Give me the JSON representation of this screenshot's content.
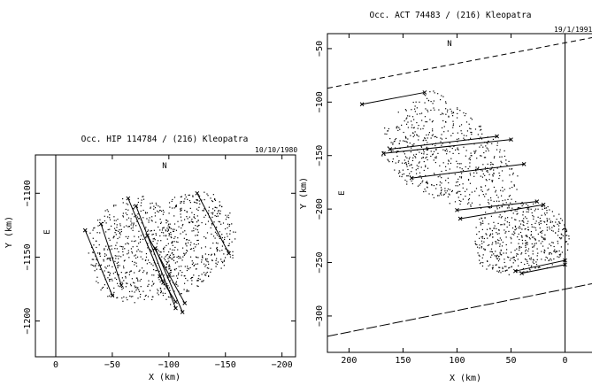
{
  "chart_data": [
    {
      "type": "scatter",
      "title": "Occ. HIP 114784 / (216) Kleopatra",
      "date": "10/10/1980",
      "xlabel": "X (km)",
      "ylabel": "Y (km)",
      "north_label": "N",
      "east_label": "E",
      "xlim": [
        18,
        -212
      ],
      "ylim": [
        -1228,
        -1070
      ],
      "x_ticks": [
        "0",
        "−50",
        "−100",
        "−150",
        "−200"
      ],
      "x_tick_values": [
        0,
        -50,
        -100,
        -150,
        -200
      ],
      "y_ticks": [
        "−1100",
        "−1150",
        "−1200"
      ],
      "y_tick_values": [
        -1100,
        -1150,
        -1200
      ],
      "lobes": [
        {
          "outline": [
            [
              -30,
              -1128
            ],
            [
              -40,
              -1115
            ],
            [
              -55,
              -1105
            ],
            [
              -75,
              -1101
            ],
            [
              -90,
              -1108
            ],
            [
              -100,
              -1120
            ],
            [
              -105,
              -1135
            ],
            [
              -102,
              -1162
            ],
            [
              -95,
              -1178
            ],
            [
              -85,
              -1185
            ],
            [
              -70,
              -1186
            ],
            [
              -50,
              -1184
            ],
            [
              -38,
              -1175
            ],
            [
              -32,
              -1160
            ],
            [
              -28,
              -1145
            ]
          ],
          "dots": 520
        },
        {
          "outline": [
            [
              -92,
              -1115
            ],
            [
              -105,
              -1103
            ],
            [
              -122,
              -1097
            ],
            [
              -140,
              -1100
            ],
            [
              -153,
              -1112
            ],
            [
              -160,
              -1130
            ],
            [
              -157,
              -1150
            ],
            [
              -145,
              -1163
            ],
            [
              -128,
              -1172
            ],
            [
              -112,
              -1180
            ],
            [
              -100,
              -1188
            ],
            [
              -93,
              -1178
            ],
            [
              -96,
              -1160
            ],
            [
              -94,
              -1140
            ]
          ],
          "dots": 460
        }
      ],
      "chords": [
        {
          "x1": -26,
          "y1": -1129,
          "x2": -50,
          "y2": -1180
        },
        {
          "x1": -40,
          "y1": -1124,
          "x2": -58,
          "y2": -1172
        },
        {
          "x1": -64,
          "y1": -1104,
          "x2": -95,
          "y2": -1170
        },
        {
          "x1": -71,
          "y1": -1110,
          "x2": -106,
          "y2": -1190
        },
        {
          "x1": -81,
          "y1": -1133,
          "x2": -114,
          "y2": -1186
        },
        {
          "x1": -88,
          "y1": -1143,
          "x2": -112,
          "y2": -1193
        },
        {
          "x1": -92,
          "y1": -1165,
          "x2": -106,
          "y2": -1185
        },
        {
          "x1": -125,
          "y1": -1100,
          "x2": -153,
          "y2": -1147
        }
      ]
    },
    {
      "type": "scatter",
      "title": "Occ. ACT 74483 / (216) Kleopatra",
      "date": "19/1/1991",
      "xlabel": "X (km)",
      "ylabel": "Y (km)",
      "north_label": "N",
      "east_label": "E",
      "xlim": [
        220,
        -34
      ],
      "ylim": [
        -334,
        -36
      ],
      "x_ticks": [
        "200",
        "150",
        "100",
        "50",
        "0"
      ],
      "x_tick_values": [
        200,
        150,
        100,
        50,
        0
      ],
      "y_ticks": [
        "−50",
        "−100",
        "−150",
        "−200",
        "−250",
        "−300"
      ],
      "y_tick_values": [
        -50,
        -100,
        -150,
        -200,
        -250,
        -300
      ],
      "limit_lines": [
        {
          "x1": 220,
          "y1": -87,
          "x2": -34,
          "y2": -38,
          "style": "dashed"
        },
        {
          "x1": 220,
          "y1": -319,
          "x2": -34,
          "y2": -268,
          "style": "long-dashed"
        }
      ],
      "lobes": [
        {
          "outline": [
            [
              120,
              -87
            ],
            [
              150,
              -103
            ],
            [
              168,
              -125
            ],
            [
              170,
              -150
            ],
            [
              155,
              -172
            ],
            [
              135,
              -185
            ],
            [
              110,
              -195
            ],
            [
              72,
              -200
            ],
            [
              45,
              -195
            ],
            [
              42,
              -170
            ],
            [
              55,
              -145
            ],
            [
              75,
              -125
            ],
            [
              95,
              -108
            ]
          ],
          "dots": 640
        },
        {
          "outline": [
            [
              72,
              -198
            ],
            [
              45,
              -193
            ],
            [
              18,
              -196
            ],
            [
              5,
              -205
            ],
            [
              -5,
              -220
            ],
            [
              -3,
              -240
            ],
            [
              15,
              -255
            ],
            [
              50,
              -262
            ],
            [
              78,
              -255
            ],
            [
              86,
              -235
            ],
            [
              82,
              -212
            ]
          ],
          "dots": 520
        }
      ],
      "chords": [
        {
          "x1": 188,
          "y1": -102,
          "x2": 130,
          "y2": -91
        },
        {
          "x1": 162,
          "y1": -144,
          "x2": 63,
          "y2": -132
        },
        {
          "x1": 168,
          "y1": -148,
          "x2": 50,
          "y2": -135
        },
        {
          "x1": 142,
          "y1": -171,
          "x2": 38,
          "y2": -158
        },
        {
          "x1": 100,
          "y1": -201,
          "x2": 26,
          "y2": -193
        },
        {
          "x1": 97,
          "y1": -209,
          "x2": 20,
          "y2": -196
        },
        {
          "x1": 46,
          "y1": -258,
          "x2": 0,
          "y2": -248
        },
        {
          "x1": 40,
          "y1": -260,
          "x2": 0,
          "y2": -252
        }
      ]
    }
  ]
}
